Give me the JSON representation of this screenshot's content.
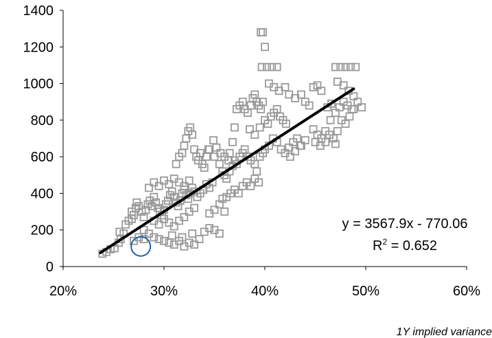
{
  "chart_data": {
    "type": "scatter",
    "xlabel": "1Y implied variance",
    "ylabel": "",
    "xlim": [
      0.2,
      0.6
    ],
    "ylim": [
      0,
      1400
    ],
    "x_ticks": [
      "20%",
      "30%",
      "40%",
      "50%",
      "60%"
    ],
    "y_ticks": [
      "0",
      "200",
      "400",
      "600",
      "800",
      "1000",
      "1200",
      "1400"
    ],
    "grid": false,
    "marker": "hollow-square",
    "marker_color": "#999999",
    "trend_color": "#000000",
    "highlight_color": "#1f5fa8",
    "trendline": {
      "slope": 3567.9,
      "intercept": -770.06,
      "x_range": [
        0.237,
        0.488
      ]
    },
    "equation": "y = 3567.9x - 770.06",
    "r2_label": "R",
    "r2_sup": "2",
    "r2_value": " = 0.652",
    "highlight": {
      "x": 0.277,
      "y": 110
    },
    "series": [
      {
        "points": [
          [
            0.239,
            70
          ],
          [
            0.243,
            80
          ],
          [
            0.247,
            95
          ],
          [
            0.251,
            100
          ],
          [
            0.255,
            130
          ],
          [
            0.257,
            150
          ],
          [
            0.26,
            180
          ],
          [
            0.256,
            190
          ],
          [
            0.262,
            230
          ],
          [
            0.265,
            250
          ],
          [
            0.268,
            260
          ],
          [
            0.27,
            280
          ],
          [
            0.268,
            300
          ],
          [
            0.272,
            320
          ],
          [
            0.275,
            330
          ],
          [
            0.273,
            350
          ],
          [
            0.278,
            300
          ],
          [
            0.28,
            270
          ],
          [
            0.282,
            310
          ],
          [
            0.284,
            340
          ],
          [
            0.286,
            360
          ],
          [
            0.288,
            330
          ],
          [
            0.29,
            380
          ],
          [
            0.292,
            350
          ],
          [
            0.294,
            320
          ],
          [
            0.296,
            300
          ],
          [
            0.298,
            280
          ],
          [
            0.3,
            310
          ],
          [
            0.302,
            340
          ],
          [
            0.304,
            360
          ],
          [
            0.306,
            390
          ],
          [
            0.308,
            410
          ],
          [
            0.31,
            380
          ],
          [
            0.312,
            350
          ],
          [
            0.314,
            330
          ],
          [
            0.316,
            360
          ],
          [
            0.318,
            400
          ],
          [
            0.32,
            420
          ],
          [
            0.322,
            390
          ],
          [
            0.324,
            370
          ],
          [
            0.326,
            400
          ],
          [
            0.328,
            430
          ],
          [
            0.33,
            410
          ],
          [
            0.333,
            380
          ],
          [
            0.336,
            400
          ],
          [
            0.339,
            420
          ],
          [
            0.342,
            450
          ],
          [
            0.345,
            430
          ],
          [
            0.348,
            460
          ],
          [
            0.285,
            430
          ],
          [
            0.29,
            460
          ],
          [
            0.295,
            440
          ],
          [
            0.3,
            470
          ],
          [
            0.305,
            450
          ],
          [
            0.31,
            480
          ],
          [
            0.315,
            460
          ],
          [
            0.32,
            440
          ],
          [
            0.325,
            470
          ],
          [
            0.29,
            250
          ],
          [
            0.295,
            230
          ],
          [
            0.3,
            260
          ],
          [
            0.305,
            240
          ],
          [
            0.31,
            220
          ],
          [
            0.315,
            250
          ],
          [
            0.32,
            270
          ],
          [
            0.325,
            300
          ],
          [
            0.33,
            320
          ],
          [
            0.28,
            200
          ],
          [
            0.285,
            180
          ],
          [
            0.29,
            160
          ],
          [
            0.295,
            150
          ],
          [
            0.3,
            140
          ],
          [
            0.305,
            130
          ],
          [
            0.31,
            120
          ],
          [
            0.315,
            140
          ],
          [
            0.32,
            110
          ],
          [
            0.325,
            130
          ],
          [
            0.33,
            120
          ],
          [
            0.335,
            150
          ],
          [
            0.34,
            190
          ],
          [
            0.345,
            210
          ],
          [
            0.35,
            200
          ],
          [
            0.355,
            180
          ],
          [
            0.27,
            140
          ],
          [
            0.275,
            160
          ],
          [
            0.28,
            150
          ],
          [
            0.308,
            170
          ],
          [
            0.318,
            160
          ],
          [
            0.328,
            180
          ],
          [
            0.312,
            560
          ],
          [
            0.315,
            600
          ],
          [
            0.318,
            620
          ],
          [
            0.32,
            660
          ],
          [
            0.322,
            700
          ],
          [
            0.324,
            740
          ],
          [
            0.326,
            760
          ],
          [
            0.328,
            720
          ],
          [
            0.33,
            640
          ],
          [
            0.332,
            600
          ],
          [
            0.334,
            580
          ],
          [
            0.336,
            620
          ],
          [
            0.338,
            560
          ],
          [
            0.34,
            540
          ],
          [
            0.342,
            600
          ],
          [
            0.345,
            640
          ],
          [
            0.35,
            600
          ],
          [
            0.355,
            560
          ],
          [
            0.358,
            520
          ],
          [
            0.36,
            500
          ],
          [
            0.362,
            480
          ],
          [
            0.365,
            520
          ],
          [
            0.368,
            550
          ],
          [
            0.37,
            580
          ],
          [
            0.372,
            560
          ],
          [
            0.375,
            600
          ],
          [
            0.378,
            620
          ],
          [
            0.38,
            640
          ],
          [
            0.383,
            600
          ],
          [
            0.386,
            580
          ],
          [
            0.39,
            560
          ],
          [
            0.392,
            520
          ],
          [
            0.395,
            600
          ],
          [
            0.398,
            620
          ],
          [
            0.4,
            640
          ],
          [
            0.404,
            660
          ],
          [
            0.408,
            700
          ],
          [
            0.412,
            680
          ],
          [
            0.416,
            640
          ],
          [
            0.42,
            620
          ],
          [
            0.424,
            650
          ],
          [
            0.428,
            680
          ],
          [
            0.432,
            700
          ],
          [
            0.436,
            660
          ],
          [
            0.358,
            370
          ],
          [
            0.362,
            380
          ],
          [
            0.366,
            400
          ],
          [
            0.37,
            420
          ],
          [
            0.374,
            400
          ],
          [
            0.378,
            440
          ],
          [
            0.382,
            460
          ],
          [
            0.386,
            440
          ],
          [
            0.39,
            480
          ],
          [
            0.394,
            460
          ],
          [
            0.36,
            300
          ],
          [
            0.355,
            340
          ],
          [
            0.35,
            310
          ],
          [
            0.345,
            290
          ],
          [
            0.365,
            620
          ],
          [
            0.368,
            680
          ],
          [
            0.37,
            760
          ],
          [
            0.372,
            860
          ],
          [
            0.375,
            880
          ],
          [
            0.378,
            900
          ],
          [
            0.38,
            860
          ],
          [
            0.383,
            840
          ],
          [
            0.386,
            880
          ],
          [
            0.388,
            920
          ],
          [
            0.39,
            940
          ],
          [
            0.392,
            900
          ],
          [
            0.394,
            880
          ],
          [
            0.396,
            860
          ],
          [
            0.398,
            900
          ],
          [
            0.4,
            800
          ],
          [
            0.403,
            780
          ],
          [
            0.406,
            820
          ],
          [
            0.409,
            840
          ],
          [
            0.412,
            860
          ],
          [
            0.415,
            820
          ],
          [
            0.418,
            800
          ],
          [
            0.421,
            780
          ],
          [
            0.385,
            750
          ],
          [
            0.39,
            720
          ],
          [
            0.395,
            760
          ],
          [
            0.396,
            1280
          ],
          [
            0.398,
            1280
          ],
          [
            0.4,
            1200
          ],
          [
            0.397,
            1090
          ],
          [
            0.402,
            1090
          ],
          [
            0.407,
            1090
          ],
          [
            0.412,
            1090
          ],
          [
            0.404,
            1000
          ],
          [
            0.409,
            980
          ],
          [
            0.414,
            960
          ],
          [
            0.42,
            980
          ],
          [
            0.424,
            940
          ],
          [
            0.43,
            920
          ],
          [
            0.436,
            940
          ],
          [
            0.44,
            900
          ],
          [
            0.444,
            880
          ],
          [
            0.448,
            980
          ],
          [
            0.452,
            990
          ],
          [
            0.456,
            960
          ],
          [
            0.448,
            750
          ],
          [
            0.452,
            720
          ],
          [
            0.456,
            700
          ],
          [
            0.46,
            740
          ],
          [
            0.464,
            720
          ],
          [
            0.468,
            700
          ],
          [
            0.472,
            740
          ],
          [
            0.45,
            680
          ],
          [
            0.455,
            660
          ],
          [
            0.46,
            680
          ],
          [
            0.47,
            670
          ],
          [
            0.465,
            800
          ],
          [
            0.47,
            840
          ],
          [
            0.474,
            870
          ],
          [
            0.478,
            900
          ],
          [
            0.482,
            880
          ],
          [
            0.486,
            860
          ],
          [
            0.476,
            800
          ],
          [
            0.48,
            780
          ],
          [
            0.484,
            820
          ],
          [
            0.488,
            860
          ],
          [
            0.462,
            870
          ],
          [
            0.466,
            890
          ],
          [
            0.47,
            1090
          ],
          [
            0.475,
            1090
          ],
          [
            0.48,
            1090
          ],
          [
            0.485,
            1090
          ],
          [
            0.49,
            1090
          ],
          [
            0.472,
            1010
          ],
          [
            0.478,
            990
          ],
          [
            0.483,
            960
          ],
          [
            0.488,
            930
          ],
          [
            0.492,
            900
          ],
          [
            0.496,
            870
          ],
          [
            0.425,
            600
          ],
          [
            0.43,
            630
          ],
          [
            0.435,
            660
          ],
          [
            0.44,
            690
          ],
          [
            0.344,
            640
          ],
          [
            0.349,
            690
          ],
          [
            0.352,
            650
          ],
          [
            0.356,
            620
          ],
          [
            0.36,
            600
          ],
          [
            0.364,
            580
          ]
        ]
      }
    ]
  }
}
